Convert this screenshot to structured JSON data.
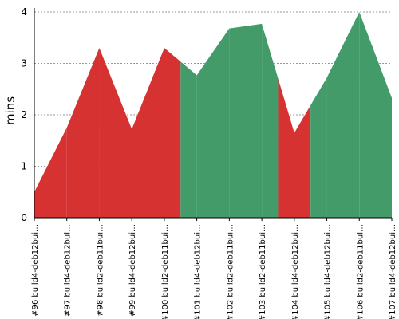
{
  "chart_data": {
    "type": "area",
    "ylabel": "mins",
    "xlabel": "",
    "ylim": [
      0,
      4
    ],
    "yticks": [
      0,
      1,
      2,
      3,
      4
    ],
    "grid": true,
    "categories": [
      "#96 build4-deb12bui…",
      "#97 build4-deb12bui…",
      "#98 build2-deb11bui…",
      "#99 build4-deb12bui…",
      "#100 build2-deb11bui…",
      "#101 build4-deb12bui…",
      "#102 build2-deb11bui…",
      "#103 build2-deb11bui…",
      "#104 build4-deb12bui…",
      "#105 build4-deb12bui…",
      "#106 build2-deb11bui…",
      "#107 build4-deb12bui…"
    ],
    "values": [
      0.5,
      1.75,
      3.3,
      1.72,
      3.3,
      2.77,
      3.68,
      3.77,
      1.65,
      2.72,
      4.0,
      2.33
    ],
    "status": [
      "fail",
      "fail",
      "fail",
      "fail",
      "fail",
      "pass",
      "pass",
      "pass",
      "fail",
      "pass",
      "pass",
      "pass"
    ],
    "colors": {
      "fail": "#d73232",
      "pass": "#439b6a",
      "grid": "#777777",
      "axis": "#000000"
    }
  }
}
